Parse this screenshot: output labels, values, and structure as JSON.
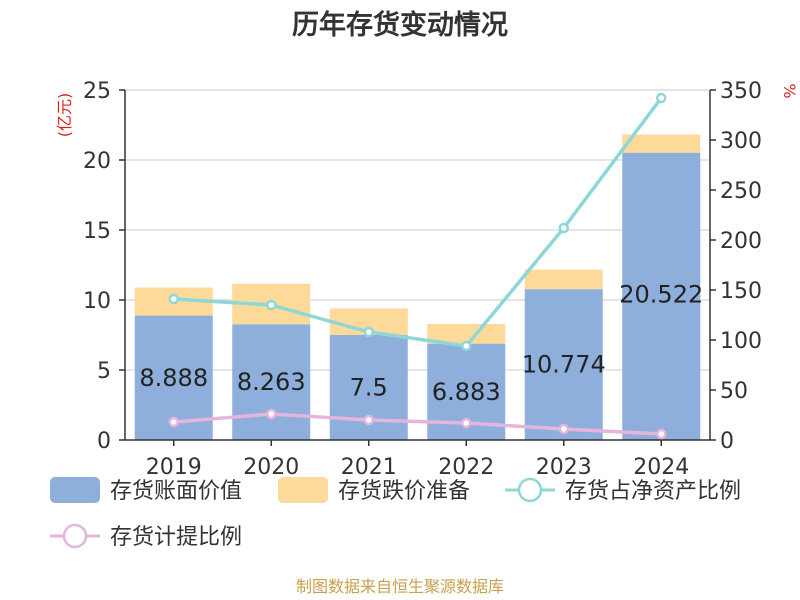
{
  "chart_data": {
    "type": "bar",
    "title": "历年存货变动情况",
    "categories": [
      "2019",
      "2020",
      "2021",
      "2022",
      "2023",
      "2024"
    ],
    "left_axis": {
      "label": "(亿元)",
      "min": 0,
      "max": 25,
      "ticks": [
        0,
        5,
        10,
        15,
        20,
        25
      ]
    },
    "right_axis": {
      "label": "%",
      "min": 0,
      "max": 350,
      "ticks": [
        0,
        50,
        100,
        150,
        200,
        250,
        300,
        350
      ]
    },
    "grid": true,
    "legend_position": "bottom",
    "series": [
      {
        "name": "存货账面价值",
        "type": "bar",
        "axis": "left",
        "color": "#8eaedb",
        "values": [
          8.888,
          8.263,
          7.5,
          6.883,
          10.774,
          20.522
        ],
        "labels": [
          "8.888",
          "8.263",
          "7.5",
          "6.883",
          "10.774",
          "20.522"
        ]
      },
      {
        "name": "存货跌价准备",
        "type": "bar",
        "stacked": true,
        "axis": "left",
        "color": "#fdd99a",
        "values": [
          2.0,
          2.9,
          1.9,
          1.4,
          1.4,
          1.3
        ]
      },
      {
        "name": "存货占净资产比例",
        "type": "line",
        "axis": "right",
        "color": "#8ed7d7",
        "values": [
          141,
          135,
          108,
          94,
          212,
          342
        ]
      },
      {
        "name": "存货计提比例",
        "type": "line",
        "axis": "right",
        "color": "#e5b5dc",
        "values": [
          18,
          26,
          20,
          17,
          11,
          6
        ]
      }
    ]
  },
  "footer": {
    "source": "制图数据来自恒生聚源数据库"
  }
}
